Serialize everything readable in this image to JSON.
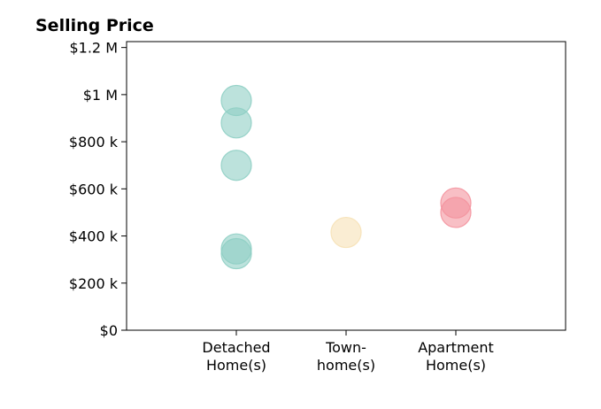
{
  "chart_data": {
    "type": "scatter",
    "title": "Selling Price",
    "xlabel": "",
    "ylabel": "",
    "categories": [
      [
        "Detached",
        "Home(s)"
      ],
      [
        "Town-",
        "home(s)"
      ],
      [
        "Apartment",
        "Home(s)"
      ]
    ],
    "yticks": [
      {
        "value": 0,
        "label": "$0"
      },
      {
        "value": 200000,
        "label": "$200 k"
      },
      {
        "value": 400000,
        "label": "$400 k"
      },
      {
        "value": 600000,
        "label": "$600 k"
      },
      {
        "value": 800000,
        "label": "$800 k"
      },
      {
        "value": 1000000,
        "label": "$1 M"
      },
      {
        "value": 1200000,
        "label": "$1.2 M"
      }
    ],
    "ylim": [
      0,
      1225000
    ],
    "grid": false,
    "points": [
      {
        "category": 0,
        "y": 975000,
        "color": "#8fcfc4"
      },
      {
        "category": 0,
        "y": 880000,
        "color": "#8fcfc4"
      },
      {
        "category": 0,
        "y": 700000,
        "color": "#8fcfc4"
      },
      {
        "category": 0,
        "y": 345000,
        "color": "#8fcfc4"
      },
      {
        "category": 0,
        "y": 325000,
        "color": "#8fcfc4"
      },
      {
        "category": 1,
        "y": 415000,
        "color": "#f6e1b6"
      },
      {
        "category": 2,
        "y": 540000,
        "color": "#f4949e"
      },
      {
        "category": 2,
        "y": 500000,
        "color": "#f4949e"
      }
    ]
  }
}
